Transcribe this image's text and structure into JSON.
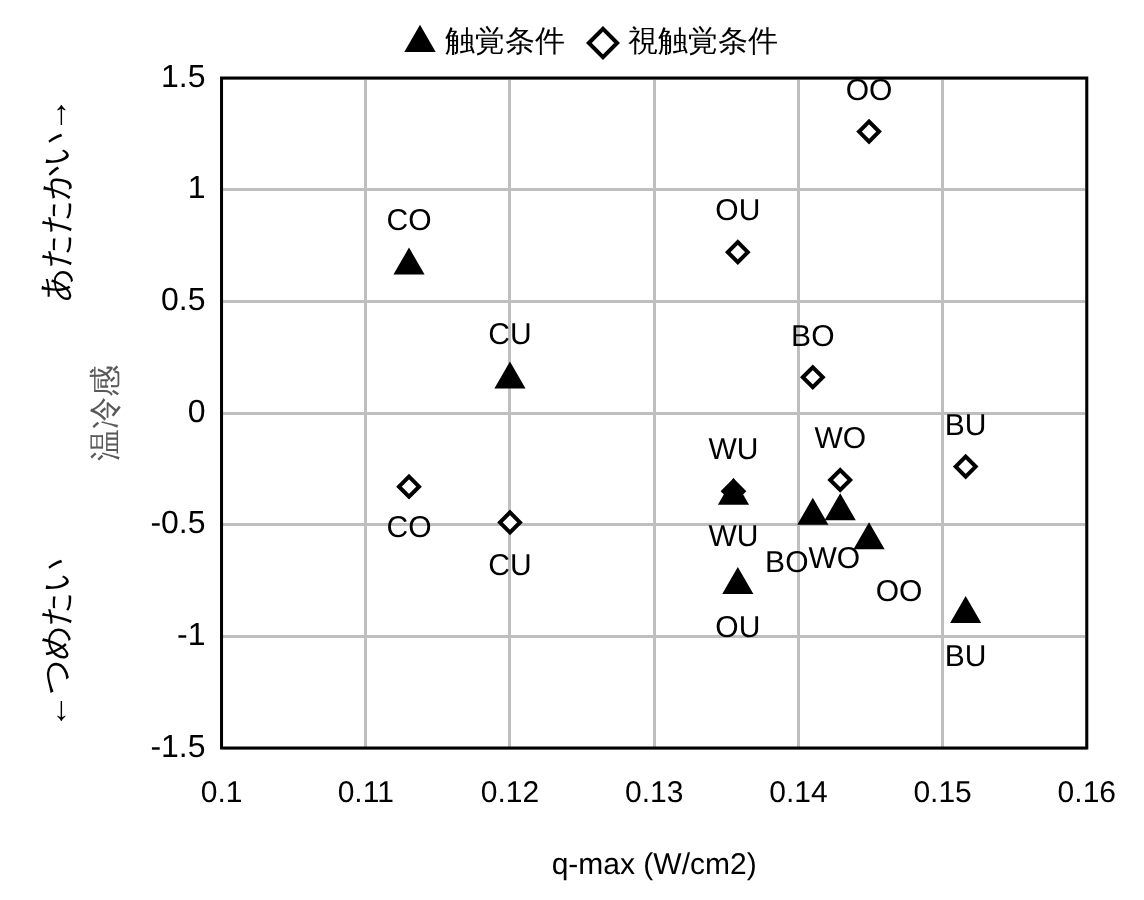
{
  "chart_data": {
    "type": "scatter",
    "xlabel": "q-max (W/cm2)",
    "ylabel": "温冷感",
    "xlim": [
      0.1,
      0.16
    ],
    "xticks": [
      0.1,
      0.11,
      0.12,
      0.13,
      0.14,
      0.15,
      0.16
    ],
    "ylim": [
      -1.5,
      1.5
    ],
    "yticks": [
      -1.5,
      -1,
      -0.5,
      0,
      0.5,
      1,
      1.5
    ],
    "grid": true,
    "legend": "top",
    "series": [
      {
        "name": "触覚条件",
        "color": "#000000",
        "marker": "triangle",
        "x": [
          0.113,
          0.12,
          0.1355,
          0.141,
          0.1429,
          0.1449,
          0.1358,
          0.1516
        ],
        "values": [
          0.66,
          0.15,
          -0.37,
          -0.46,
          -0.44,
          -0.57,
          -0.77,
          -0.9
        ]
      },
      {
        "name": "視触覚条件",
        "color": "#000000",
        "marker": "diamond",
        "x": [
          0.113,
          0.12,
          0.1449,
          0.1358,
          0.141,
          0.1429,
          0.1516,
          0.1355
        ],
        "values": [
          -0.33,
          -0.49,
          1.26,
          0.72,
          0.16,
          -0.3,
          -0.24,
          -0.35
        ]
      }
    ],
    "annotations": [
      "あたたかい→",
      "←つめたい",
      {
        "text": "CO",
        "x": 0.113,
        "y": 0.66
      },
      {
        "text": "CU",
        "x": 0.12,
        "y": 0.15
      },
      {
        "text": "WU",
        "x": 0.1355,
        "y": -0.37
      },
      {
        "text": "BO",
        "x": 0.141,
        "y": -0.46
      },
      {
        "text": "OO",
        "x": 0.1449,
        "y": -0.57
      },
      {
        "text": "OU",
        "x": 0.1358,
        "y": -0.77
      },
      {
        "text": "BU",
        "x": 0.1516,
        "y": -0.9
      },
      {
        "text": "WO",
        "x": 0.1429,
        "y": -0.44
      },
      {
        "text": "CO",
        "x": 0.113,
        "y": -0.33
      },
      {
        "text": "CU",
        "x": 0.12,
        "y": -0.49
      },
      {
        "text": "OO",
        "x": 0.1449,
        "y": 1.26
      },
      {
        "text": "OU",
        "x": 0.1358,
        "y": 0.72
      },
      {
        "text": "BO",
        "x": 0.141,
        "y": 0.16
      },
      {
        "text": "WO",
        "x": 0.1429,
        "y": -0.3
      },
      {
        "text": "BU",
        "x": 0.1516,
        "y": -0.24
      },
      {
        "text": "WU",
        "x": 0.1355,
        "y": -0.35
      }
    ]
  }
}
